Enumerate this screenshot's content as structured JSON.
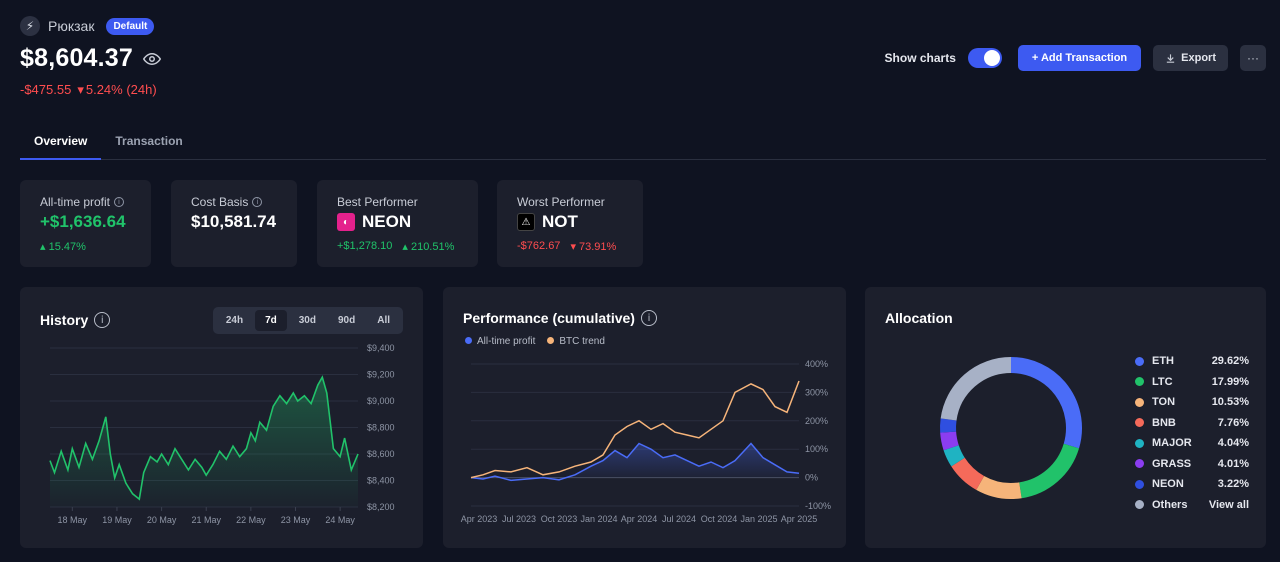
{
  "wallet": {
    "name": "Рюкзак",
    "badge": "Default",
    "icon": "bolt-icon"
  },
  "balance": "$8,604.37",
  "change": {
    "amount": "-$475.55",
    "percent": "5.24% (24h)"
  },
  "actions": {
    "show_charts_label": "Show charts",
    "show_charts_on": true,
    "add_label": "+ Add Transaction",
    "export_label": "Export",
    "more_label": "···"
  },
  "tabs": [
    {
      "label": "Overview",
      "active": true
    },
    {
      "label": "Transaction",
      "active": false
    }
  ],
  "stats": {
    "all_time": {
      "label": "All-time profit",
      "value": "+$1,636.64",
      "pct": "15.47%"
    },
    "cost_basis": {
      "label": "Cost Basis",
      "value": "$10,581.74"
    },
    "best": {
      "label": "Best Performer",
      "coin": "NEON",
      "amount": "+$1,278.10",
      "pct": "210.51%"
    },
    "worst": {
      "label": "Worst Performer",
      "coin": "NOT",
      "amount": "-$762.67",
      "pct": "73.91%"
    }
  },
  "history": {
    "title": "History",
    "ranges": [
      "24h",
      "7d",
      "30d",
      "90d",
      "All"
    ],
    "active_range": "7d"
  },
  "performance": {
    "title": "Performance (cumulative)"
  },
  "allocation": {
    "title": "Allocation",
    "view_all": "View all",
    "items": [
      {
        "name": "ETH",
        "pct": "29.62%",
        "color": "#4a6cf7"
      },
      {
        "name": "LTC",
        "pct": "17.99%",
        "color": "#21c26a"
      },
      {
        "name": "TON",
        "pct": "10.53%",
        "color": "#f6b47a"
      },
      {
        "name": "BNB",
        "pct": "7.76%",
        "color": "#f56a5a"
      },
      {
        "name": "MAJOR",
        "pct": "4.04%",
        "color": "#1fb3c2"
      },
      {
        "name": "GRASS",
        "pct": "4.01%",
        "color": "#8b3df0"
      },
      {
        "name": "NEON",
        "pct": "3.22%",
        "color": "#2f4fe0"
      },
      {
        "name": "Others",
        "pct": "",
        "color": "#a7b1c6"
      }
    ]
  },
  "chart_data": [
    {
      "type": "area",
      "title": "History",
      "x_ticks": [
        "18 May",
        "19 May",
        "20 May",
        "21 May",
        "22 May",
        "23 May",
        "24 May"
      ],
      "y_ticks": [
        "$9,400",
        "$9,200",
        "$9,000",
        "$8,800",
        "$8,600",
        "$8,400",
        "$8,200"
      ],
      "ylim": [
        8200,
        9400
      ],
      "grid": true,
      "series": [
        {
          "color": "#21c26a",
          "x": [
            17.5,
            17.6,
            17.75,
            17.9,
            18.0,
            18.15,
            18.3,
            18.45,
            18.6,
            18.75,
            18.85,
            18.95,
            19.05,
            19.2,
            19.35,
            19.5,
            19.6,
            19.75,
            19.9,
            20.0,
            20.15,
            20.3,
            20.45,
            20.6,
            20.75,
            20.9,
            21.0,
            21.15,
            21.3,
            21.45,
            21.6,
            21.75,
            21.9,
            22.0,
            22.1,
            22.2,
            22.35,
            22.5,
            22.65,
            22.8,
            22.95,
            23.05,
            23.2,
            23.35,
            23.5,
            23.6,
            23.7,
            23.85,
            24.0,
            24.1,
            24.25,
            24.4
          ],
          "y": [
            8550,
            8460,
            8620,
            8480,
            8640,
            8500,
            8680,
            8560,
            8700,
            8880,
            8600,
            8420,
            8520,
            8380,
            8300,
            8260,
            8460,
            8580,
            8540,
            8600,
            8520,
            8640,
            8560,
            8480,
            8560,
            8500,
            8440,
            8520,
            8620,
            8560,
            8660,
            8580,
            8640,
            8760,
            8700,
            8840,
            8780,
            8960,
            9040,
            8980,
            9060,
            9000,
            9040,
            8980,
            9120,
            9180,
            9060,
            8640,
            8580,
            8720,
            8480,
            8600
          ]
        }
      ]
    },
    {
      "type": "line",
      "title": "Performance (cumulative)",
      "x_ticks": [
        "Apr 2023",
        "Jul 2023",
        "Oct 2023",
        "Jan 2024",
        "Apr 2024",
        "Jul 2024",
        "Oct 2024",
        "Jan 2025",
        "Apr 2025"
      ],
      "y_ticks": [
        "400%",
        "300%",
        "200%",
        "100%",
        "0%",
        "-100%"
      ],
      "ylim": [
        -100,
        400
      ],
      "grid": true,
      "series": [
        {
          "name": "All-time profit",
          "color": "#4a6cf7",
          "x": [
            0,
            0.3,
            0.6,
            1.0,
            1.4,
            1.8,
            2.2,
            2.6,
            3.0,
            3.3,
            3.6,
            3.9,
            4.2,
            4.5,
            4.8,
            5.1,
            5.4,
            5.7,
            6.0,
            6.3,
            6.6,
            7.0,
            7.3,
            7.6,
            7.9,
            8.2
          ],
          "y": [
            0,
            -5,
            5,
            -10,
            -5,
            0,
            -8,
            10,
            40,
            60,
            95,
            70,
            120,
            100,
            70,
            80,
            60,
            40,
            55,
            35,
            60,
            120,
            70,
            45,
            20,
            15
          ]
        },
        {
          "name": "BTC trend",
          "color": "#f6b47a",
          "x": [
            0,
            0.3,
            0.6,
            1.0,
            1.4,
            1.8,
            2.2,
            2.6,
            3.0,
            3.3,
            3.6,
            3.9,
            4.2,
            4.5,
            4.8,
            5.1,
            5.4,
            5.7,
            6.0,
            6.3,
            6.6,
            7.0,
            7.3,
            7.6,
            7.9,
            8.2
          ],
          "y": [
            0,
            10,
            25,
            20,
            35,
            10,
            20,
            40,
            55,
            80,
            150,
            180,
            200,
            170,
            190,
            160,
            150,
            140,
            170,
            200,
            300,
            330,
            310,
            250,
            230,
            340
          ]
        }
      ]
    },
    {
      "type": "pie",
      "title": "Allocation",
      "donut": true,
      "labels": [
        "ETH",
        "LTC",
        "TON",
        "BNB",
        "MAJOR",
        "GRASS",
        "NEON",
        "Others"
      ],
      "values": [
        29.62,
        17.99,
        10.53,
        7.76,
        4.04,
        4.01,
        3.22,
        22.83
      ]
    }
  ]
}
